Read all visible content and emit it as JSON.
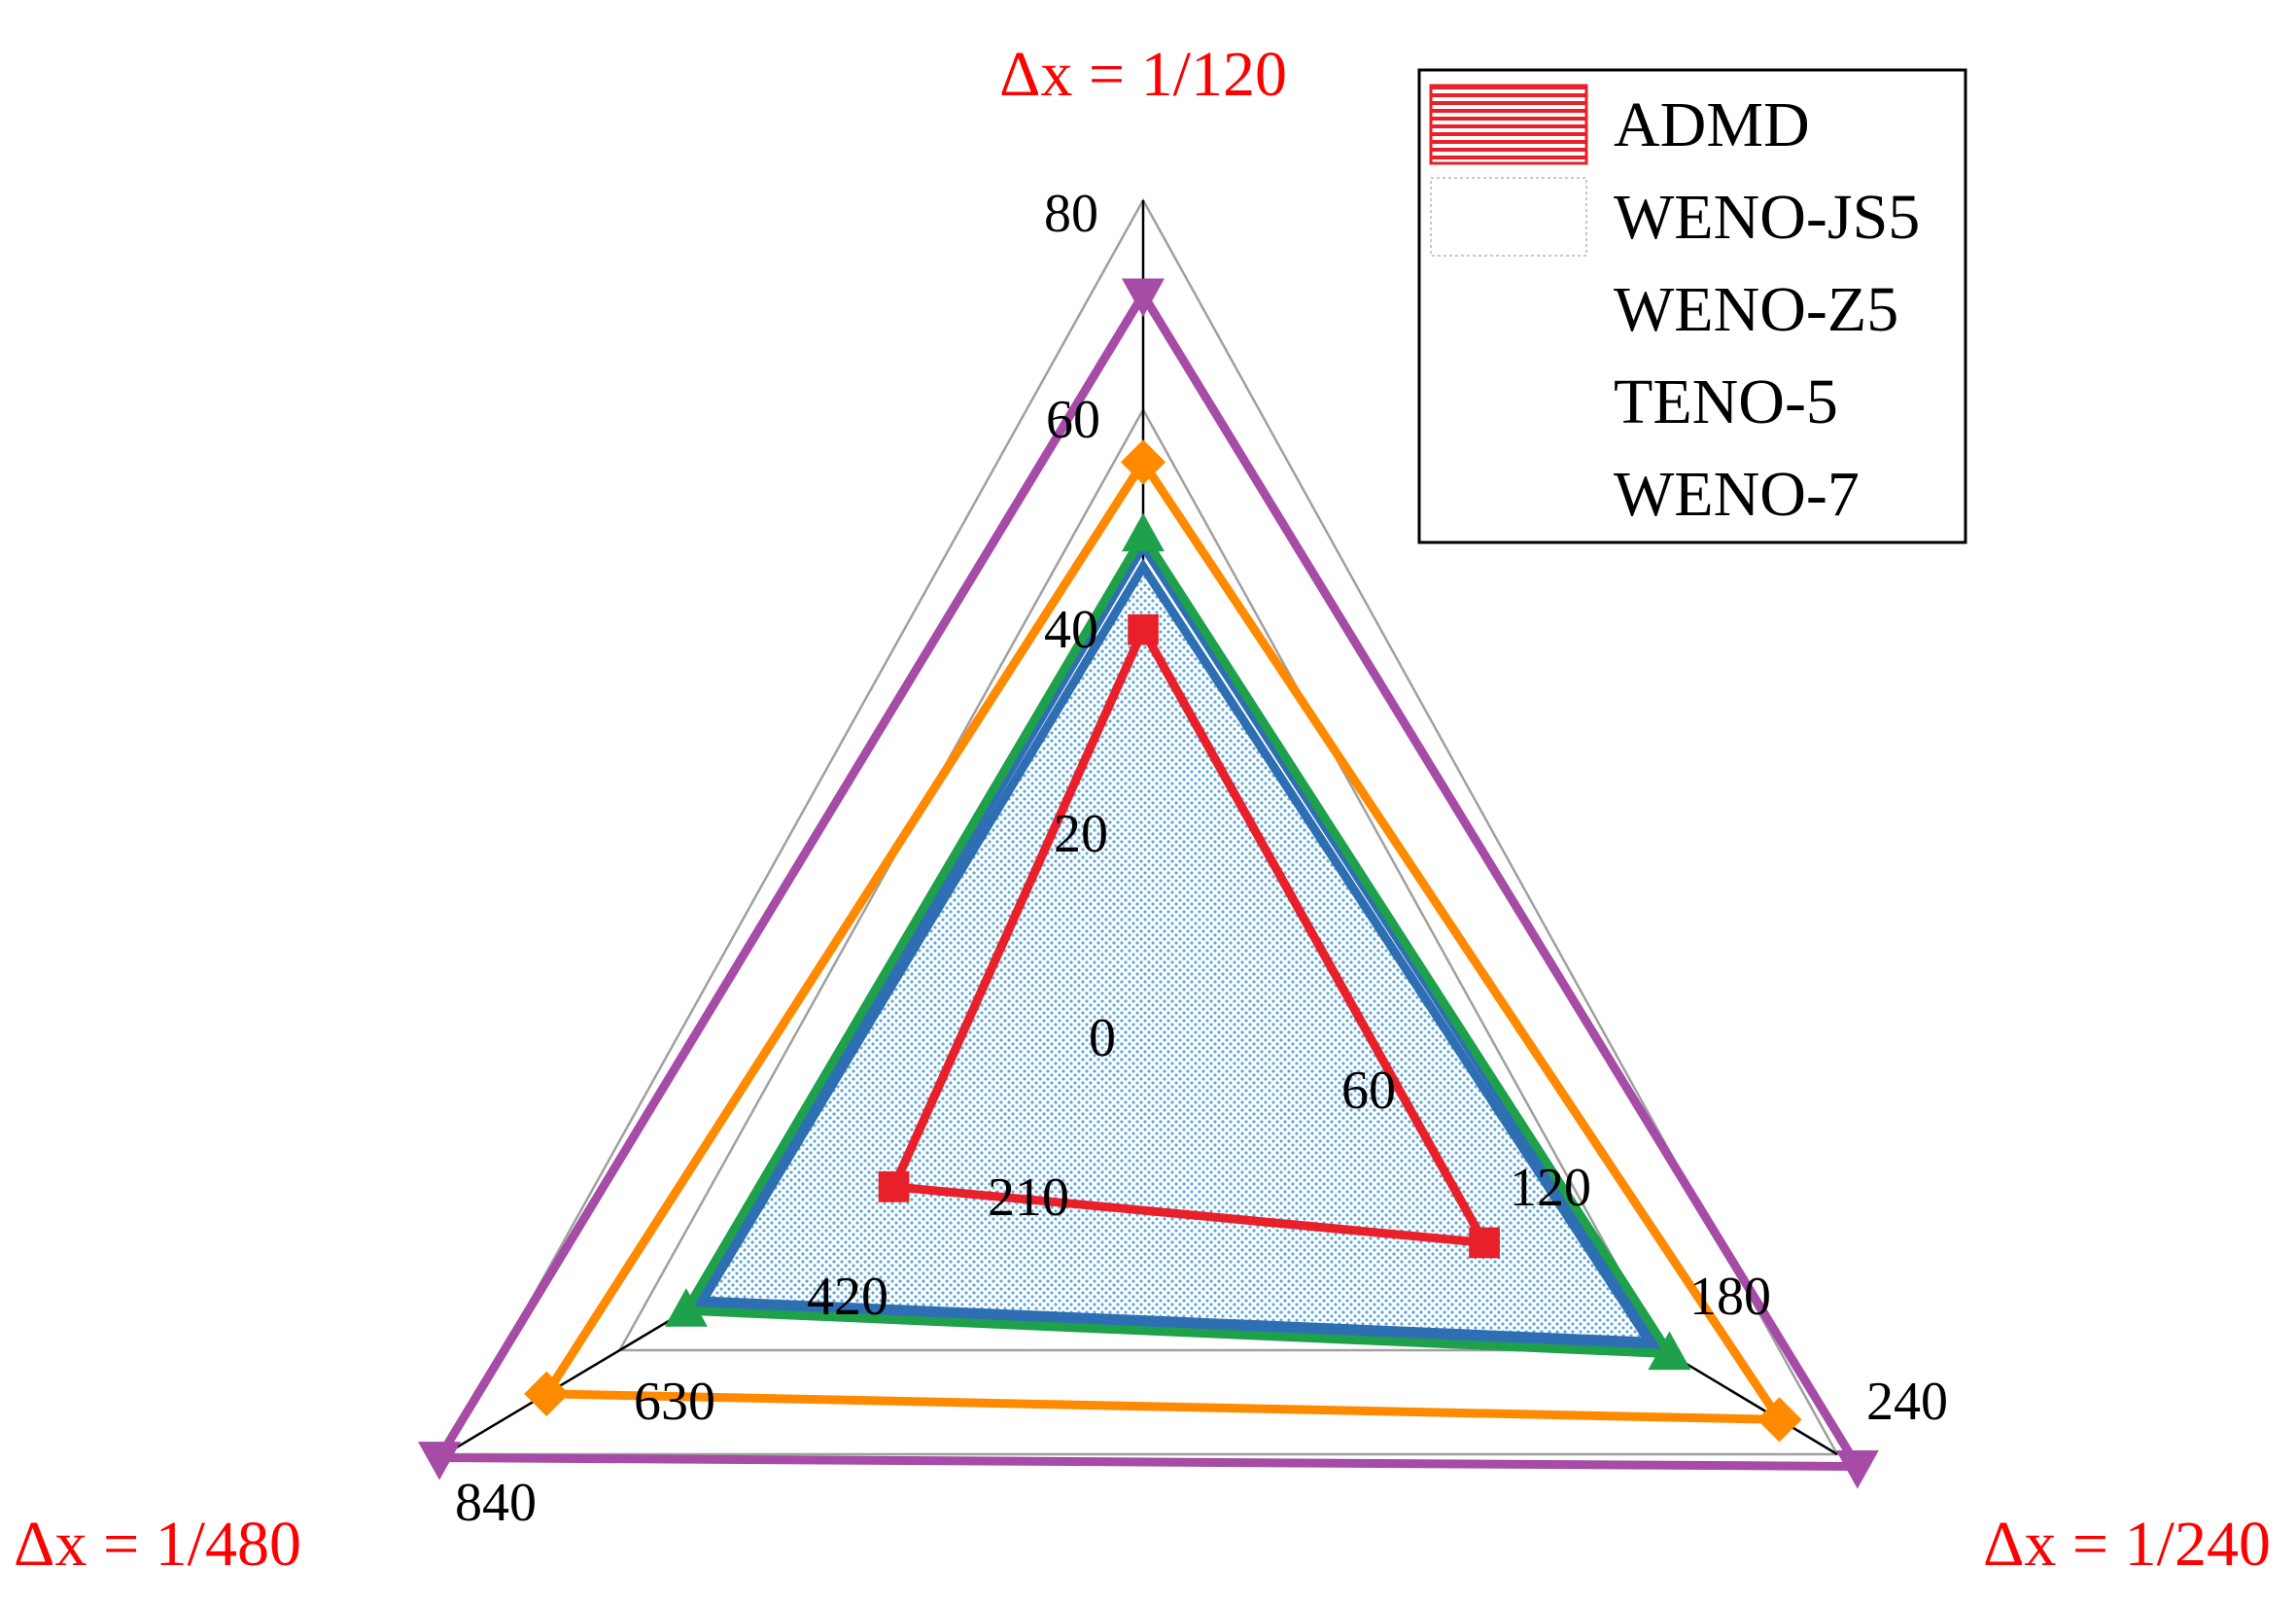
{
  "chart_data": {
    "type": "radar",
    "axes": [
      {
        "title": "Δx = 1/120",
        "max": 80,
        "ticks": [
          "0",
          "20",
          "40",
          "60",
          "80"
        ],
        "tick_values": [
          0,
          20,
          40,
          60,
          80
        ]
      },
      {
        "title": "Δx = 1/240",
        "max": 240,
        "ticks": [
          "60",
          "120",
          "180",
          "240"
        ],
        "tick_values": [
          60,
          120,
          180,
          240
        ]
      },
      {
        "title": "Δx = 1/480",
        "max": 840,
        "ticks": [
          "210",
          "420",
          "630",
          "840"
        ],
        "tick_values": [
          210,
          420,
          630,
          840
        ]
      }
    ],
    "series": [
      {
        "name": "ADMD",
        "values": [
          39,
          118,
          300
        ],
        "color": "#e8202a",
        "marker": "square",
        "fill": "hatched-red"
      },
      {
        "name": "WENO-JS5",
        "values": [
          45,
          175,
          530
        ],
        "color": "#2e6fb4",
        "marker": "none",
        "fill": "dotted-blue"
      },
      {
        "name": "WENO-Z5",
        "values": [
          47,
          180,
          540
        ],
        "color": "#2e6fb4",
        "marker": "none"
      },
      {
        "name": "TENO-5",
        "values": [
          48,
          182,
          550
        ],
        "color": "#1fa04b",
        "marker": "triangle-up"
      },
      {
        "name": "WENO-7",
        "values": [
          55,
          220,
          718
        ],
        "color": "#ff8a00",
        "marker": "diamond"
      },
      {
        "name": "WENO-7",
        "values": [
          71,
          247,
          847
        ],
        "color": "#a64ca6",
        "marker": "triangle-down",
        "legend": false
      }
    ],
    "title_color": "#ff0000",
    "grid": true,
    "legend_position": "top-right"
  }
}
